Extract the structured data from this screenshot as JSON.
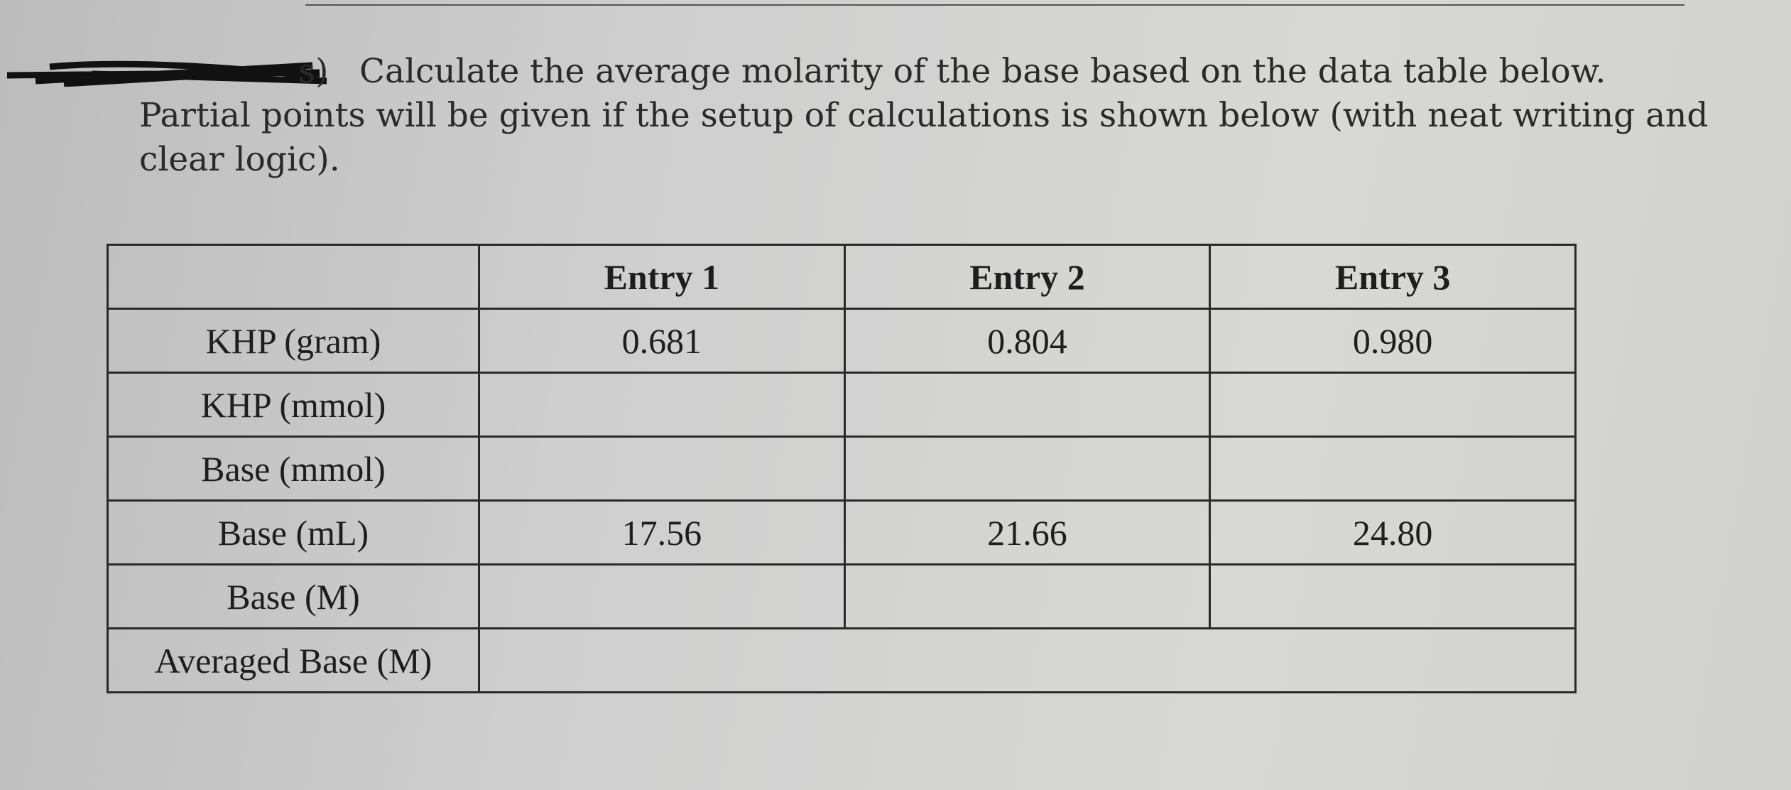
{
  "question": {
    "prefix": "s)",
    "text": "Calculate the average molarity of the base based on the data table below. Partial points will be given if the setup of calculations is shown below (with neat writing and clear logic)."
  },
  "table": {
    "columns": [
      "Entry 1",
      "Entry 2",
      "Entry 3"
    ],
    "rows": [
      {
        "label": "KHP (gram)",
        "cells": [
          "0.681",
          "0.804",
          "0.980"
        ]
      },
      {
        "label": "KHP (mmol)"
      },
      {
        "label": "Base (mmol)"
      },
      {
        "label": "Base (mL)",
        "cells": [
          "17.56",
          "21.66",
          "24.80"
        ]
      },
      {
        "label": "Base (M)"
      }
    ],
    "footer": "Averaged Base (M)"
  }
}
